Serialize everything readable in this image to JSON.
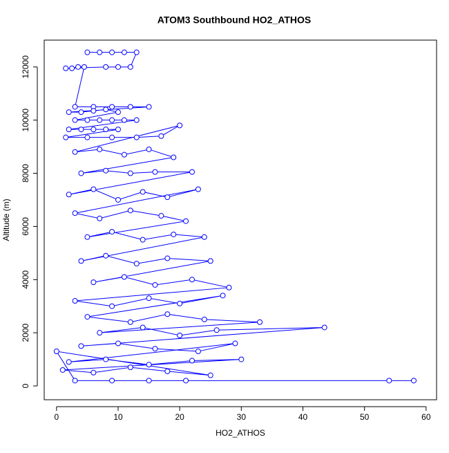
{
  "chart_data": {
    "type": "line",
    "title": "ATOM3 Southbound HO2_ATHOS",
    "x_label": "HO2_ATHOS",
    "y_label": "Altitude (m)",
    "color": "#0000ff",
    "markers": true,
    "x": [
      5,
      7,
      9,
      11,
      13,
      12,
      10,
      8,
      1.5,
      2.5,
      3.5,
      4.5,
      3,
      6,
      9,
      12,
      15,
      2,
      4,
      6,
      8,
      10,
      3,
      5,
      7,
      9,
      11,
      13,
      2,
      4,
      6,
      8,
      10,
      1.5,
      5,
      9,
      13,
      17,
      20,
      3,
      7,
      11,
      15,
      19,
      4,
      8,
      12,
      16,
      22,
      2,
      6,
      10,
      14,
      18,
      23,
      3,
      7,
      12,
      17,
      21,
      5,
      9,
      14,
      19,
      24,
      4,
      8,
      13,
      18,
      25,
      6,
      11,
      16,
      22,
      28,
      3,
      9,
      15,
      20,
      27,
      5,
      12,
      18,
      24,
      33,
      7,
      14,
      20,
      26,
      43.5,
      4,
      10,
      16,
      23,
      29,
      2,
      8,
      15,
      22,
      30,
      1,
      6,
      12,
      18,
      25,
      0,
      3,
      9,
      15,
      21,
      54,
      58
    ],
    "values": [
      12550,
      12550,
      12550,
      12550,
      12550,
      12000,
      12000,
      12000,
      11950,
      11950,
      12000,
      12000,
      10500,
      10500,
      10500,
      10500,
      10500,
      10300,
      10300,
      10350,
      10400,
      10300,
      10000,
      10000,
      10000,
      10000,
      10000,
      10000,
      9650,
      9650,
      9650,
      9650,
      9650,
      9350,
      9350,
      9350,
      9350,
      9400,
      9800,
      8800,
      8900,
      8700,
      8900,
      8600,
      8000,
      8100,
      8000,
      8050,
      8050,
      7200,
      7400,
      7000,
      7300,
      7100,
      7400,
      6500,
      6300,
      6600,
      6400,
      6200,
      5600,
      5800,
      5500,
      5700,
      5600,
      4700,
      4900,
      4600,
      4800,
      4700,
      3900,
      4100,
      3800,
      4000,
      3700,
      3200,
      3000,
      3300,
      3100,
      3400,
      2600,
      2400,
      2700,
      2500,
      2400,
      2000,
      2200,
      1900,
      2100,
      2200,
      1500,
      1600,
      1400,
      1300,
      1600,
      900,
      1000,
      800,
      950,
      1000,
      600,
      500,
      700,
      550,
      400,
      1300,
      200,
      200,
      200,
      200,
      200,
      200
    ],
    "xlim": [
      -2.0,
      61.7
    ],
    "ylim": [
      -520,
      13010
    ],
    "xticks": [
      0,
      10,
      20,
      30,
      40,
      50,
      60
    ],
    "yticks": [
      0,
      2000,
      4000,
      6000,
      8000,
      10000,
      12000
    ]
  }
}
